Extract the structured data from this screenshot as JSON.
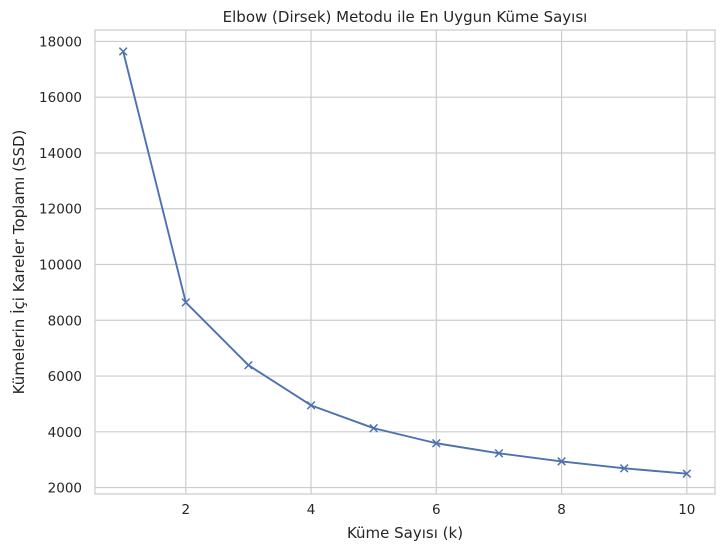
{
  "chart_data": {
    "type": "line",
    "title": "Elbow (Dirsek) Metodu ile En Uygun Küme Sayısı",
    "xlabel": "Küme Sayısı (k)",
    "ylabel": "Kümelerin İçi Kareler Toplamı (SSD)",
    "x_ticks": [
      2,
      4,
      6,
      8,
      10
    ],
    "y_ticks": [
      2000,
      4000,
      6000,
      8000,
      10000,
      12000,
      14000,
      16000,
      18000
    ],
    "xlim": [
      0.55,
      10.45
    ],
    "ylim": [
      1770,
      18410
    ],
    "grid": true,
    "marker": "x",
    "series": [
      {
        "x": [
          1,
          2,
          3,
          4,
          5,
          6,
          7,
          8,
          9,
          10
        ],
        "values": [
          17640,
          8640,
          6390,
          4950,
          4130,
          3590,
          3230,
          2940,
          2690,
          2500
        ]
      }
    ],
    "colors": {
      "line": "#4c72b0",
      "grid": "#cccccc",
      "text": "#262626"
    }
  }
}
